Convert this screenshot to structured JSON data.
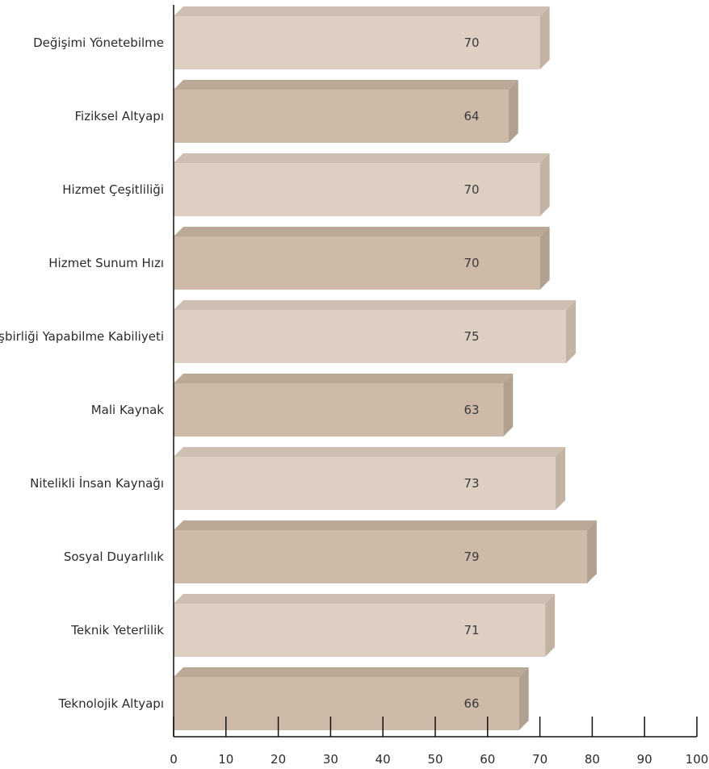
{
  "chart_data": {
    "type": "bar",
    "orientation": "horizontal",
    "three_d": true,
    "categories": [
      "Değişimi Yönetebilme",
      "Fiziksel Altyapı",
      "Hizmet Çeşitliliği",
      "Hizmet Sunum Hızı",
      "İşbirliği Yapabilme Kabiliyeti",
      "Mali Kaynak",
      "Nitelikli İnsan Kaynağı",
      "Sosyal Duyarlılık",
      "Teknik Yeterlilik",
      "Teknolojik Altyapı"
    ],
    "values": [
      70,
      64,
      70,
      70,
      75,
      63,
      73,
      79,
      71,
      66
    ],
    "data_labels": [
      "70",
      "64",
      "70",
      "70",
      "75",
      "63",
      "73",
      "79",
      "71",
      "66"
    ],
    "xlim": [
      0,
      100
    ],
    "x_ticks": [
      0,
      10,
      20,
      30,
      40,
      50,
      60,
      70,
      80,
      90,
      100
    ],
    "x_tick_labels": [
      "0",
      "10",
      "20",
      "30",
      "40",
      "50",
      "60",
      "70",
      "80",
      "90",
      "100"
    ],
    "grid": false,
    "legend": "none",
    "colors": {
      "light_face": "#ddd0c3",
      "light_top": "#cdbfb1",
      "light_side": "#c2b3a5",
      "dark_face": "#cdbaa8",
      "dark_top": "#bba998",
      "dark_side": "#b2a090",
      "axis": "#111111"
    }
  }
}
